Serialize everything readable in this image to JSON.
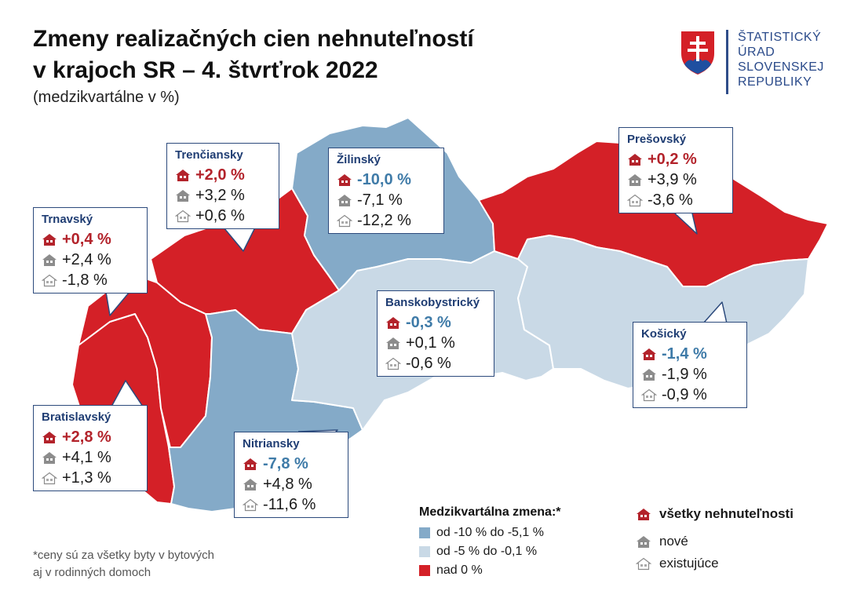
{
  "title_line1": "Zmeny realizačných cien nehnuteľností",
  "title_line2": "v krajoch SR – 4. štvrťrok 2022",
  "subtitle": "(medzikvartálne v %)",
  "logo": {
    "lines": [
      "ŠTATISTICKÝ",
      "ÚRAD",
      "SLOVENSKEJ",
      "REPUBLIKY"
    ]
  },
  "colors": {
    "dark_blue": "#84aac8",
    "light_blue": "#c9d9e6",
    "red": "#d42027",
    "pos_text": "#b3232b",
    "neg_text": "#3f7ba8"
  },
  "regions": [
    {
      "id": "bratislavsky",
      "name": "Bratislavský",
      "all": "+2,8 %",
      "new": "+4,1 %",
      "existing": "+1,3 %",
      "category": "red"
    },
    {
      "id": "trnavsky",
      "name": "Trnavský",
      "all": "+0,4 %",
      "new": "+2,4 %",
      "existing": "-1,8 %",
      "category": "red"
    },
    {
      "id": "trenciansky",
      "name": "Trenčiansky",
      "all": "+2,0 %",
      "new": "+3,2 %",
      "existing": "+0,6 %",
      "category": "red"
    },
    {
      "id": "nitriansky",
      "name": "Nitriansky",
      "all": "-7,8 %",
      "new": "+4,8 %",
      "existing": "-11,6 %",
      "category": "dark_blue"
    },
    {
      "id": "zilinsky",
      "name": "Žilinský",
      "all": "-10,0 %",
      "new": "-7,1 %",
      "existing": "-12,2 %",
      "category": "dark_blue"
    },
    {
      "id": "banskobystricky",
      "name": "Banskobystrický",
      "all": "-0,3 %",
      "new": "+0,1 %",
      "existing": "-0,6 %",
      "category": "light_blue"
    },
    {
      "id": "presovsky",
      "name": "Prešovský",
      "all": "+0,2 %",
      "new": "+3,9 %",
      "existing": "-3,6 %",
      "category": "red"
    },
    {
      "id": "kosicky",
      "name": "Košický",
      "all": "-1,4 %",
      "new": "-1,9 %",
      "existing": "-0,9 %",
      "category": "light_blue"
    }
  ],
  "legend": {
    "title": "Medzikvartálna zmena:*",
    "items": [
      {
        "label": "od -10 % do -5,1 %",
        "color": "#84aac8"
      },
      {
        "label": "od -5 % do -0,1 %",
        "color": "#c9d9e6"
      },
      {
        "label": "nad 0 %",
        "color": "#d42027"
      }
    ],
    "icons": [
      {
        "label": "všetky nehnuteľnosti",
        "icon": "house-filled-red-icon"
      },
      {
        "label": "nové",
        "icon": "house-filled-gray-icon"
      },
      {
        "label": "existujúce",
        "icon": "house-outline-icon"
      }
    ]
  },
  "footnote_line1": "*ceny sú za všetky byty v bytových",
  "footnote_line2": "aj v rodinných domoch"
}
